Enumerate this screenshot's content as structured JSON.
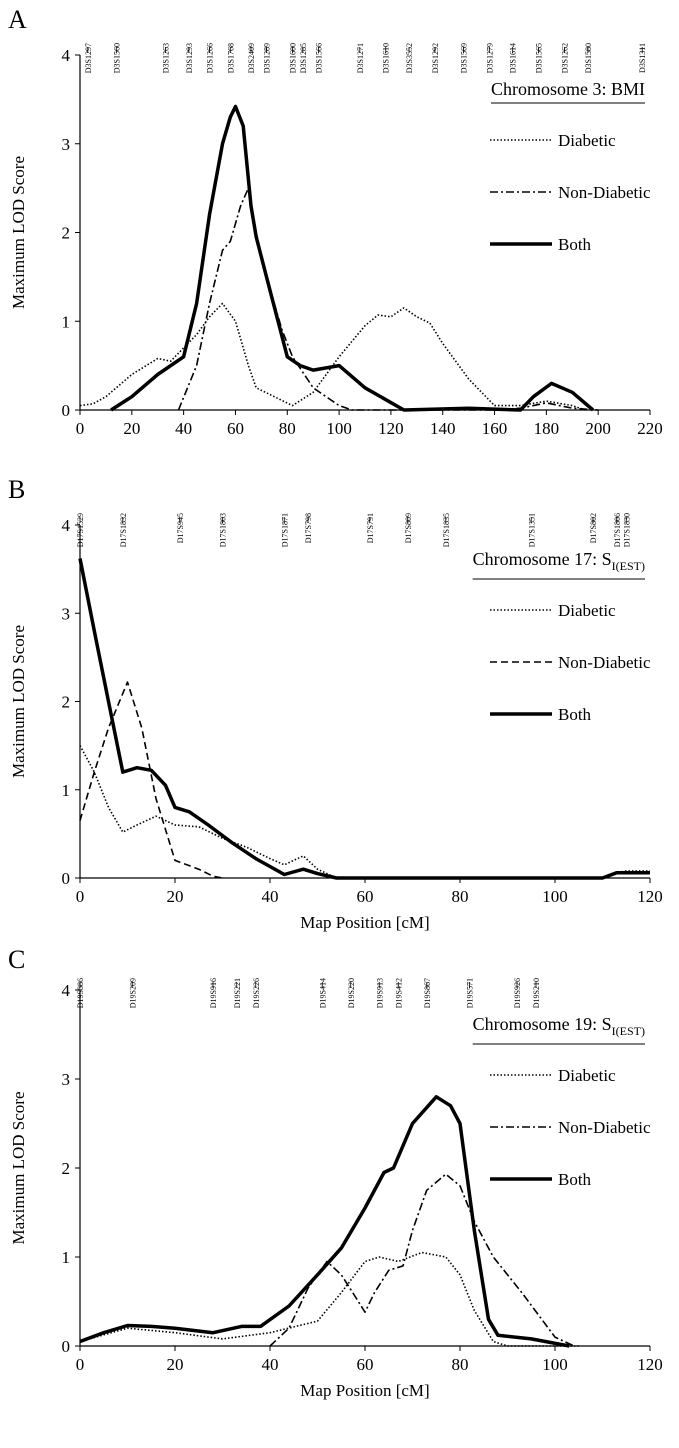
{
  "chart_data": [
    {
      "type": "line",
      "panel": "A",
      "title": "Chromosome 3: BMI",
      "ylabel": "Maximum LOD Score",
      "xlim": [
        0,
        220
      ],
      "xticks": [
        0,
        20,
        40,
        60,
        80,
        100,
        120,
        140,
        160,
        180,
        200,
        220
      ],
      "ylim": [
        0,
        4
      ],
      "yticks": [
        0,
        1,
        2,
        3,
        4
      ],
      "markers": [
        {
          "label": "D3S1297",
          "x": 3
        },
        {
          "label": "D3S1560",
          "x": 14
        },
        {
          "label": "D3S1263",
          "x": 33
        },
        {
          "label": "D3S1293",
          "x": 42
        },
        {
          "label": "D3S1266",
          "x": 50
        },
        {
          "label": "D3S1768",
          "x": 58
        },
        {
          "label": "D3S2409",
          "x": 66
        },
        {
          "label": "D3S1289",
          "x": 72
        },
        {
          "label": "D3S1600",
          "x": 82
        },
        {
          "label": "D3S1285",
          "x": 86
        },
        {
          "label": "D3S1566",
          "x": 92
        },
        {
          "label": "D3S1271",
          "x": 108
        },
        {
          "label": "D3S1610",
          "x": 118
        },
        {
          "label": "D3S3552",
          "x": 127
        },
        {
          "label": "D3S1292",
          "x": 137
        },
        {
          "label": "D3S1569",
          "x": 148
        },
        {
          "label": "D3S1279",
          "x": 158
        },
        {
          "label": "D3S1614",
          "x": 167
        },
        {
          "label": "D3S1565",
          "x": 177
        },
        {
          "label": "D3S1262",
          "x": 187
        },
        {
          "label": "D3S1580",
          "x": 196
        },
        {
          "label": "D3S1311",
          "x": 217
        }
      ],
      "series": [
        {
          "name": "Diabetic",
          "color": "#000000",
          "style": "dotted",
          "x": [
            0,
            5,
            10,
            20,
            30,
            35,
            40,
            45,
            50,
            55,
            60,
            65,
            68,
            75,
            82,
            90,
            100,
            110,
            115,
            120,
            125,
            130,
            135,
            140,
            150,
            160,
            170,
            180,
            190,
            195
          ],
          "values": [
            0.05,
            0.07,
            0.15,
            0.4,
            0.58,
            0.55,
            0.7,
            0.85,
            1.05,
            1.2,
            1.0,
            0.5,
            0.25,
            0.15,
            0.05,
            0.2,
            0.6,
            0.95,
            1.07,
            1.05,
            1.15,
            1.05,
            0.98,
            0.75,
            0.35,
            0.05,
            0.05,
            0.1,
            0.05,
            0
          ]
        },
        {
          "name": "Non-Diabetic",
          "color": "#000000",
          "style": "dash-dot",
          "x": [
            38,
            45,
            50,
            55,
            58,
            62,
            65,
            68,
            72,
            78,
            82,
            90,
            100,
            105,
            160,
            170,
            180,
            190,
            200
          ],
          "values": [
            0,
            0.5,
            1.2,
            1.8,
            1.9,
            2.3,
            2.5,
            2.0,
            1.5,
            0.9,
            0.6,
            0.25,
            0.05,
            0,
            0,
            0.02,
            0.08,
            0.02,
            0
          ]
        },
        {
          "name": "Both",
          "color": "#000000",
          "style": "solid",
          "x": [
            12,
            20,
            30,
            40,
            45,
            50,
            55,
            58,
            60,
            63,
            66,
            68,
            72,
            80,
            85,
            90,
            100,
            110,
            125,
            150,
            170,
            175,
            182,
            190,
            198
          ],
          "values": [
            0,
            0.15,
            0.4,
            0.6,
            1.2,
            2.2,
            3.0,
            3.3,
            3.42,
            3.2,
            2.3,
            1.95,
            1.5,
            0.6,
            0.5,
            0.45,
            0.5,
            0.25,
            0,
            0.02,
            0,
            0.15,
            0.3,
            0.2,
            0
          ]
        }
      ]
    },
    {
      "type": "line",
      "panel": "B",
      "title": "Chromosome 17: S",
      "title_subscript": "I(EST)",
      "ylabel": "Maximum LOD Score",
      "xlabel": "Map Position [cM]",
      "xlim": [
        0,
        120
      ],
      "xticks": [
        0,
        20,
        40,
        60,
        80,
        100,
        120
      ],
      "ylim": [
        0,
        4
      ],
      "yticks": [
        0,
        1,
        2,
        3,
        4
      ],
      "markers": [
        {
          "label": "D17S1529",
          "x": 0
        },
        {
          "label": "D17S1832",
          "x": 9
        },
        {
          "label": "D17S945",
          "x": 21
        },
        {
          "label": "D17S1803",
          "x": 30
        },
        {
          "label": "D17S1871",
          "x": 43
        },
        {
          "label": "D17S798",
          "x": 48
        },
        {
          "label": "D17S791",
          "x": 61
        },
        {
          "label": "D17S809",
          "x": 69
        },
        {
          "label": "D17S1835",
          "x": 77
        },
        {
          "label": "D17S1351",
          "x": 95
        },
        {
          "label": "D17S802",
          "x": 108
        },
        {
          "label": "D17S1806",
          "x": 113
        },
        {
          "label": "D17S1830",
          "x": 115
        }
      ],
      "series": [
        {
          "name": "Diabetic",
          "color": "#000000",
          "style": "dotted",
          "x": [
            0,
            3,
            6,
            9,
            12,
            16,
            20,
            25,
            30,
            35,
            40,
            43,
            47,
            50,
            54,
            110,
            112,
            115,
            120
          ],
          "values": [
            1.5,
            1.2,
            0.8,
            0.52,
            0.6,
            0.7,
            0.6,
            0.58,
            0.45,
            0.35,
            0.22,
            0.15,
            0.25,
            0.1,
            0,
            0,
            0.05,
            0.08,
            0.08
          ]
        },
        {
          "name": "Non-Diabetic",
          "color": "#000000",
          "style": "dashed",
          "x": [
            0,
            3,
            6,
            10,
            13,
            16,
            20,
            25,
            28,
            30
          ],
          "values": [
            0.65,
            1.2,
            1.7,
            2.22,
            1.7,
            0.9,
            0.2,
            0.1,
            0.02,
            0
          ]
        },
        {
          "name": "Both",
          "color": "#000000",
          "style": "solid",
          "x": [
            0,
            3,
            6,
            9,
            12,
            15,
            18,
            20,
            23,
            27,
            32,
            37,
            43,
            47,
            50,
            54,
            110,
            113,
            120
          ],
          "values": [
            3.62,
            2.8,
            2.0,
            1.2,
            1.25,
            1.22,
            1.05,
            0.8,
            0.75,
            0.6,
            0.4,
            0.22,
            0.04,
            0.1,
            0.05,
            0,
            0,
            0.06,
            0.06
          ]
        }
      ]
    },
    {
      "type": "line",
      "panel": "C",
      "title": "Chromosome 19: S",
      "title_subscript": "I(EST)",
      "ylabel": "Maximum LOD Score",
      "xlabel": "Map Position [cM]",
      "xlim": [
        0,
        120
      ],
      "xticks": [
        0,
        20,
        40,
        60,
        80,
        100,
        120
      ],
      "ylim": [
        0,
        4
      ],
      "yticks": [
        0,
        1,
        2,
        3,
        4
      ],
      "markers": [
        {
          "label": "D19S886",
          "x": 0
        },
        {
          "label": "D19S209",
          "x": 11
        },
        {
          "label": "D19S916",
          "x": 28
        },
        {
          "label": "D19S221",
          "x": 33
        },
        {
          "label": "D19S226",
          "x": 37
        },
        {
          "label": "D19S414",
          "x": 51
        },
        {
          "label": "D19S220",
          "x": 57
        },
        {
          "label": "D19S913",
          "x": 63
        },
        {
          "label": "D19S412",
          "x": 67
        },
        {
          "label": "D19S867",
          "x": 73
        },
        {
          "label": "D19S571",
          "x": 82
        },
        {
          "label": "D19S926",
          "x": 92
        },
        {
          "label": "D19S210",
          "x": 96
        }
      ],
      "series": [
        {
          "name": "Diabetic",
          "color": "#000000",
          "style": "dotted",
          "x": [
            0,
            10,
            20,
            30,
            40,
            50,
            55,
            60,
            63,
            67,
            72,
            77,
            80,
            83,
            87,
            90,
            105
          ],
          "values": [
            0.05,
            0.2,
            0.15,
            0.08,
            0.15,
            0.28,
            0.6,
            0.95,
            1.0,
            0.95,
            1.05,
            1.0,
            0.8,
            0.4,
            0.05,
            0,
            0
          ]
        },
        {
          "name": "Non-Diabetic",
          "color": "#000000",
          "style": "dash-dot",
          "x": [
            40,
            44,
            48,
            52,
            55,
            58,
            60,
            62,
            65,
            68,
            70,
            73,
            77,
            80,
            83,
            87,
            93,
            100,
            104
          ],
          "values": [
            0,
            0.2,
            0.65,
            0.95,
            0.8,
            0.55,
            0.38,
            0.6,
            0.85,
            0.9,
            1.3,
            1.75,
            1.93,
            1.8,
            1.4,
            1.0,
            0.6,
            0.1,
            0
          ]
        },
        {
          "name": "Both",
          "color": "#000000",
          "style": "solid",
          "x": [
            0,
            5,
            10,
            15,
            20,
            28,
            34,
            38,
            44,
            50,
            55,
            60,
            64,
            66,
            70,
            75,
            78,
            80,
            83,
            86,
            88,
            95,
            103
          ],
          "values": [
            0.05,
            0.15,
            0.23,
            0.22,
            0.2,
            0.15,
            0.22,
            0.22,
            0.45,
            0.8,
            1.1,
            1.55,
            1.95,
            2.0,
            2.5,
            2.8,
            2.7,
            2.5,
            1.3,
            0.3,
            0.12,
            0.08,
            0
          ]
        }
      ]
    }
  ]
}
